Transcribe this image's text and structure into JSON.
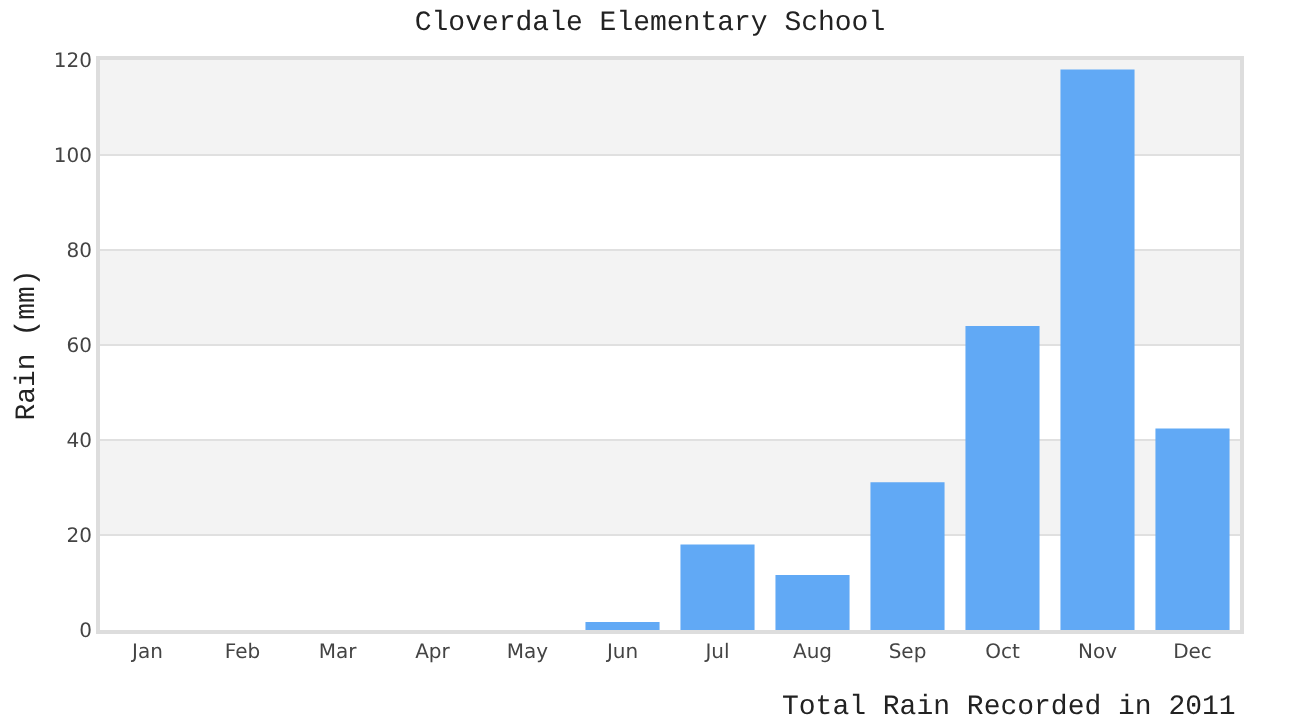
{
  "chart_data": {
    "type": "bar",
    "title": "Cloverdale Elementary School",
    "xlabel": "Total Rain Recorded in 2011",
    "ylabel": "Rain (mm)",
    "categories": [
      "Jan",
      "Feb",
      "Mar",
      "Apr",
      "May",
      "Jun",
      "Jul",
      "Aug",
      "Sep",
      "Oct",
      "Nov",
      "Dec"
    ],
    "values": [
      0,
      0,
      0,
      0,
      0,
      1.7,
      18,
      11.6,
      31.1,
      64,
      118,
      42.4
    ],
    "color": "#61a9f5",
    "ylim": [
      0,
      120
    ],
    "yticks": [
      0,
      20,
      40,
      60,
      80,
      100,
      120
    ],
    "grid": "y",
    "bands": [
      {
        "axis": "y",
        "from": 20,
        "to": 40,
        "color": "#f3f3f3"
      },
      {
        "axis": "y",
        "from": 60,
        "to": 80,
        "color": "#f3f3f3"
      },
      {
        "axis": "y",
        "from": 100,
        "to": 120,
        "color": "#f3f3f3"
      }
    ]
  }
}
